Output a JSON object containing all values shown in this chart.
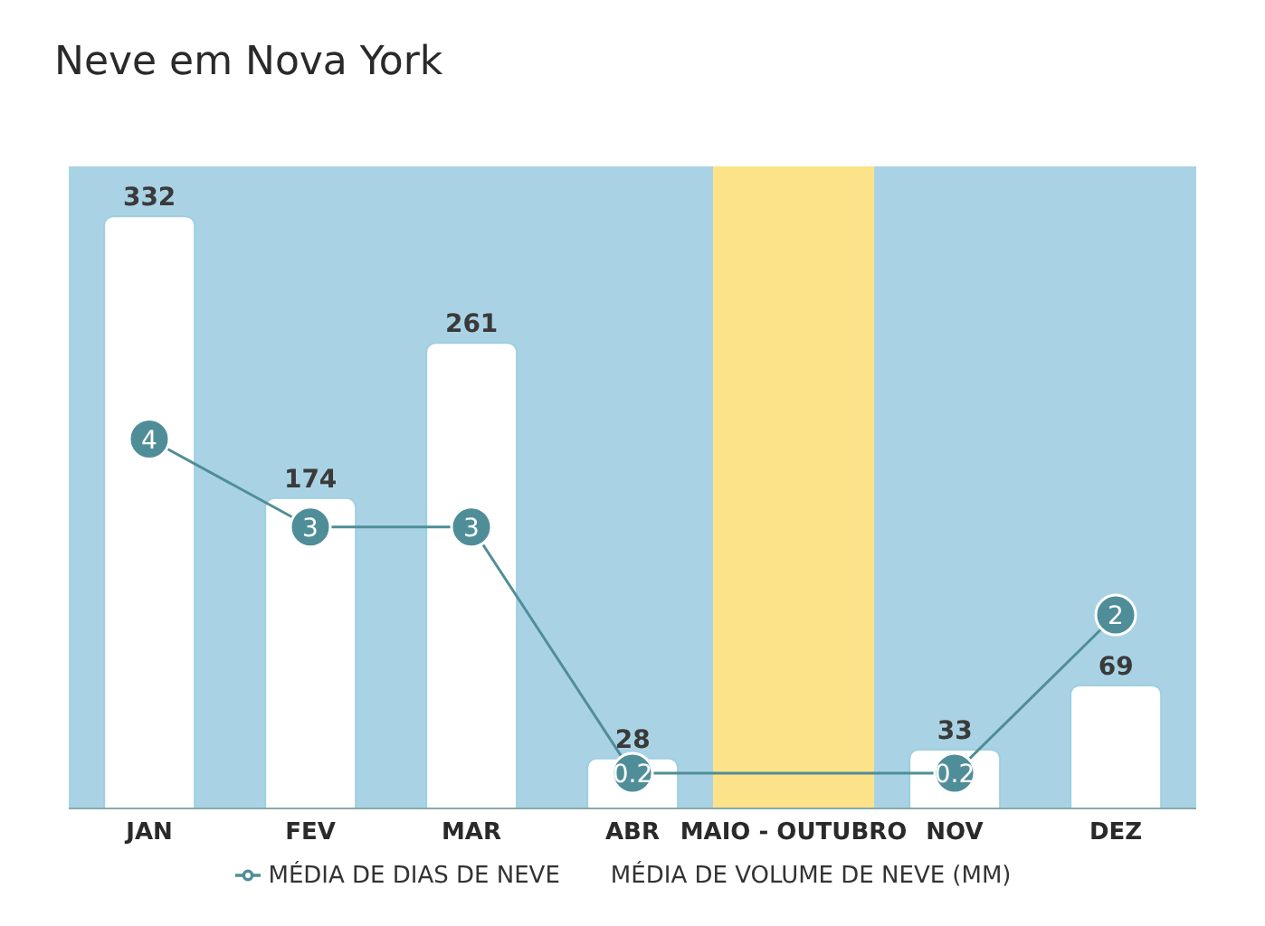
{
  "chart_data": {
    "type": "bar",
    "title": "Neve em Nova York",
    "categories": [
      "JAN",
      "FEV",
      "MAR",
      "ABR",
      "MAIO - OUTUBRO",
      "NOV",
      "DEZ"
    ],
    "series": [
      {
        "name": "MÉDIA DE VOLUME DE NEVE (MM)",
        "color": "#ffffff",
        "values": [
          332,
          174,
          261,
          28,
          null,
          33,
          69
        ]
      },
      {
        "name": "MÉDIA DE DIAS DE NEVE",
        "type": "line",
        "axis": "y2",
        "color": "#4f8e98",
        "marker": "circle",
        "values": [
          4,
          3,
          3,
          0.2,
          null,
          0.2,
          2
        ]
      }
    ],
    "ylim": [
      0,
      360
    ],
    "y2lim": [
      -0.2,
      7.1
    ],
    "tick_labels": "x",
    "bands": [
      {
        "axis": "x",
        "from": "MAIO - OUTUBRO",
        "to": "MAIO - OUTUBRO",
        "color": "#fce38a"
      }
    ],
    "data_labels": true,
    "grid": false,
    "legend": "bottom"
  }
}
